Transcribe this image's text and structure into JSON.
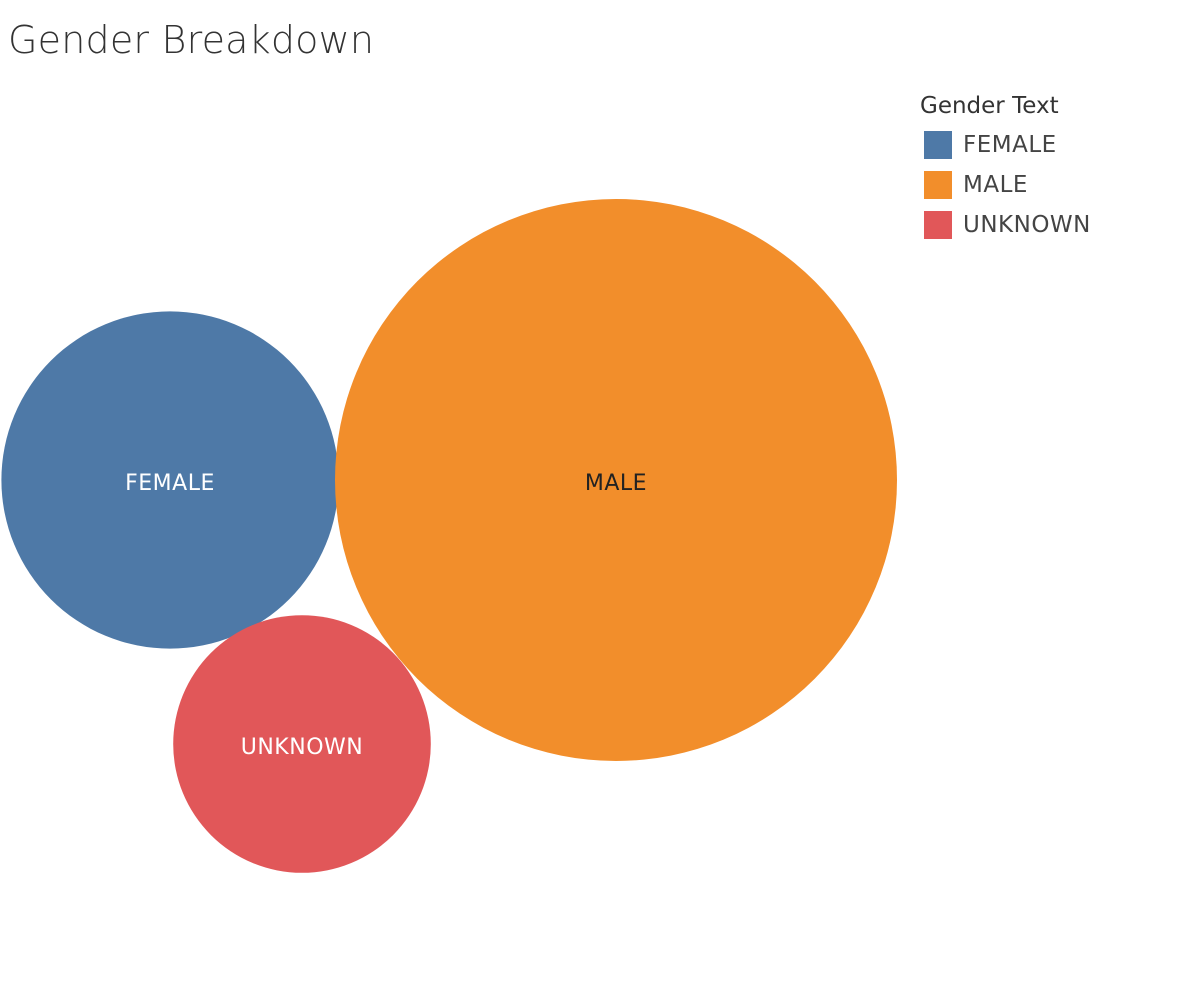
{
  "chart_data": {
    "type": "bubble",
    "title": "Gender Breakdown",
    "legend": {
      "title": "Gender Text",
      "placement": "top-right",
      "entries": [
        {
          "label": "FEMALE",
          "color": "#4e79a7"
        },
        {
          "label": "MALE",
          "color": "#f28e2b"
        },
        {
          "label": "UNKNOWN",
          "color": "#e15759"
        }
      ]
    },
    "bubbles": [
      {
        "name": "FEMALE",
        "relative_size": 0.36,
        "color": "#4e79a7",
        "label_color": "#ffffff"
      },
      {
        "name": "MALE",
        "relative_size": 1.0,
        "color": "#f28e2b",
        "label_color": "#222222"
      },
      {
        "name": "UNKNOWN",
        "relative_size": 0.21,
        "color": "#e15759",
        "label_color": "#ffffff"
      }
    ]
  }
}
